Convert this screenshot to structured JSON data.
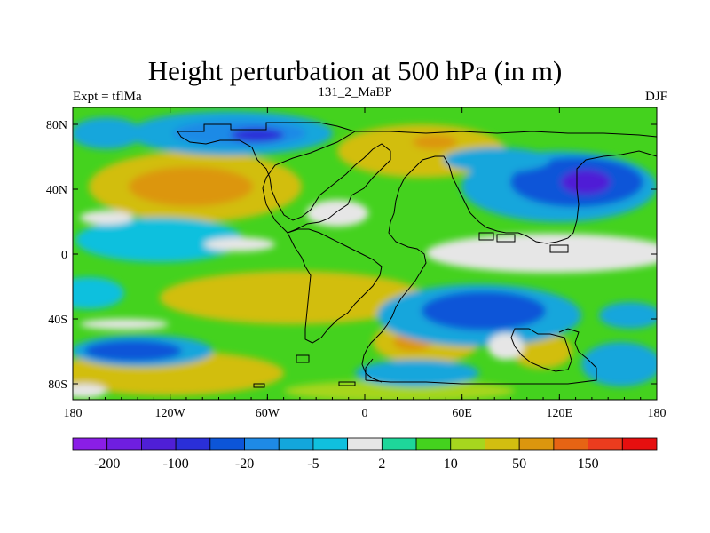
{
  "title": "Height perturbation at 500 hPa (in m)",
  "subtitle_left": "Expt = tflMa",
  "subtitle_center": "131_2_MaBP",
  "subtitle_right": "DJF",
  "lat_ticks": [
    "80N",
    "40N",
    "0",
    "40S",
    "80S"
  ],
  "lon_ticks": [
    "180",
    "120W",
    "60W",
    "0",
    "60E",
    "120E",
    "180"
  ],
  "colorbar": {
    "colors": [
      "#8a1ee6",
      "#6f1ee0",
      "#4f1fd6",
      "#2a2fd8",
      "#0c55d8",
      "#1e8ae6",
      "#13a6dc",
      "#10c0de",
      "#e6e6e6",
      "#1ed69a",
      "#44d21e",
      "#a6d61e",
      "#d2be10",
      "#dc960e",
      "#e66414",
      "#ec3c1e",
      "#e60f0f"
    ],
    "labels": [
      "-200",
      "-100",
      "-20",
      "-5",
      "2",
      "10",
      "50",
      "150"
    ]
  }
}
